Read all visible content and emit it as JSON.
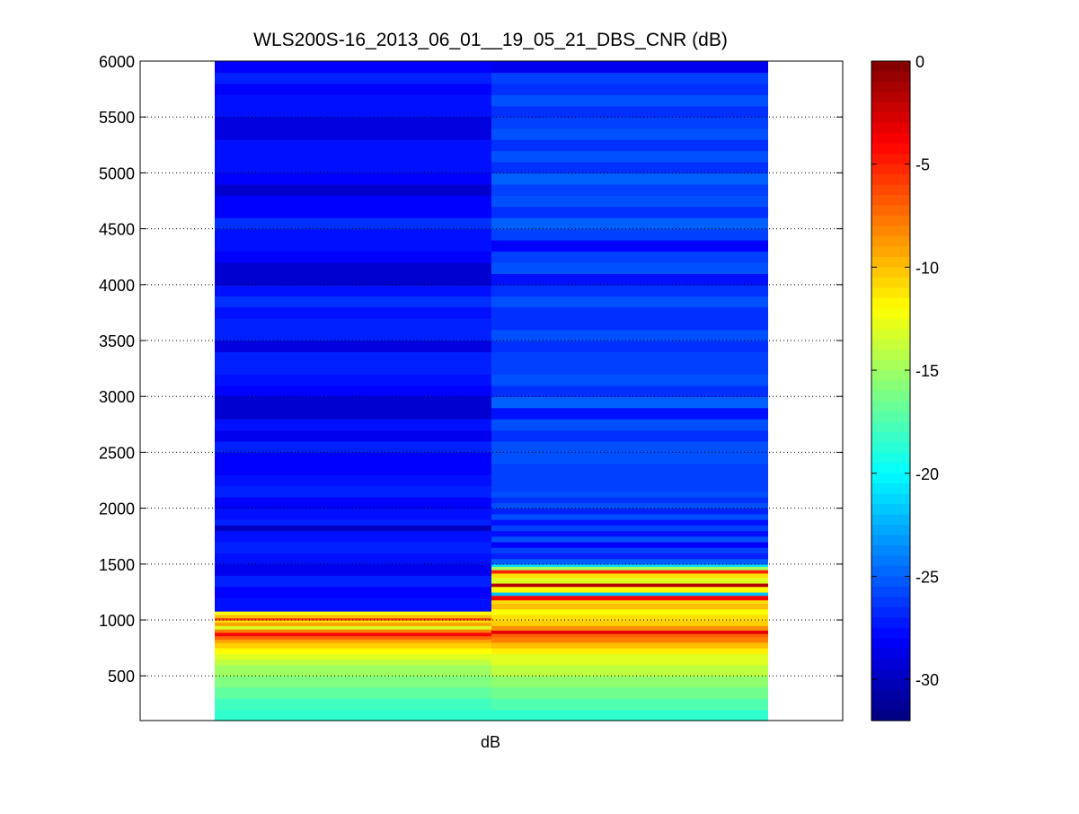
{
  "chart_data": {
    "type": "heatmap",
    "title": "WLS200S-16_2013_06_01__19_05_21_DBS_CNR (dB)",
    "xlabel": "dB",
    "ylabel": "",
    "ylim": [
      100,
      6000
    ],
    "yticks": [
      500,
      1000,
      1500,
      2000,
      2500,
      3000,
      3500,
      4000,
      4500,
      5000,
      5500,
      6000
    ],
    "grid": "horizontal dotted",
    "colormap": "jet",
    "colorbar": {
      "clim": [
        -32,
        0
      ],
      "ticks": [
        0,
        -5,
        -10,
        -15,
        -20,
        -25,
        -30
      ]
    },
    "columns": [
      {
        "rows": [
          [
            100,
            200,
            -18.5
          ],
          [
            200,
            300,
            -18.0
          ],
          [
            300,
            400,
            -17.0
          ],
          [
            400,
            500,
            -16.0
          ],
          [
            500,
            600,
            -15.0
          ],
          [
            600,
            650,
            -14.0
          ],
          [
            650,
            700,
            -13.0
          ],
          [
            700,
            750,
            -12.0
          ],
          [
            750,
            800,
            -10.5
          ],
          [
            800,
            830,
            -9.0
          ],
          [
            830,
            860,
            -7.0
          ],
          [
            860,
            890,
            -4.0
          ],
          [
            890,
            920,
            -8.0
          ],
          [
            920,
            950,
            -13.0
          ],
          [
            950,
            980,
            -9.0
          ],
          [
            980,
            1000,
            -11.0
          ],
          [
            1000,
            1020,
            -6.0
          ],
          [
            1020,
            1050,
            -10.0
          ],
          [
            1050,
            1080,
            -12.0
          ],
          [
            1080,
            1200,
            -27.5
          ],
          [
            1200,
            1300,
            -28.0
          ],
          [
            1300,
            1400,
            -27.0
          ],
          [
            1400,
            1500,
            -28.5
          ],
          [
            1500,
            1600,
            -27.5
          ],
          [
            1600,
            1700,
            -27.0
          ],
          [
            1700,
            1800,
            -27.5
          ],
          [
            1800,
            1850,
            -30.0
          ],
          [
            1850,
            1900,
            -27.0
          ],
          [
            1900,
            2000,
            -27.5
          ],
          [
            2000,
            2100,
            -28.0
          ],
          [
            2100,
            2200,
            -27.0
          ],
          [
            2200,
            2300,
            -27.5
          ],
          [
            2300,
            2500,
            -28.0
          ],
          [
            2500,
            2600,
            -27.0
          ],
          [
            2600,
            2700,
            -28.5
          ],
          [
            2700,
            2800,
            -27.5
          ],
          [
            2800,
            3000,
            -29.5
          ],
          [
            3000,
            3100,
            -28.0
          ],
          [
            3100,
            3200,
            -27.5
          ],
          [
            3200,
            3400,
            -27.0
          ],
          [
            3400,
            3500,
            -29.0
          ],
          [
            3500,
            3700,
            -27.0
          ],
          [
            3700,
            3800,
            -27.5
          ],
          [
            3800,
            3900,
            -26.5
          ],
          [
            3900,
            4000,
            -27.5
          ],
          [
            4000,
            4200,
            -29.5
          ],
          [
            4200,
            4300,
            -28.0
          ],
          [
            4300,
            4500,
            -27.5
          ],
          [
            4500,
            4600,
            -26.5
          ],
          [
            4600,
            4800,
            -28.0
          ],
          [
            4800,
            4900,
            -29.5
          ],
          [
            4900,
            5000,
            -28.0
          ],
          [
            5000,
            5300,
            -27.5
          ],
          [
            5300,
            5500,
            -29.0
          ],
          [
            5500,
            5700,
            -27.5
          ],
          [
            5700,
            5800,
            -28.0
          ],
          [
            5800,
            5900,
            -27.0
          ],
          [
            5900,
            6000,
            -28.0
          ]
        ]
      },
      {
        "rows": [
          [
            100,
            200,
            -18.5
          ],
          [
            200,
            300,
            -17.5
          ],
          [
            300,
            400,
            -16.5
          ],
          [
            400,
            500,
            -15.5
          ],
          [
            500,
            600,
            -14.0
          ],
          [
            600,
            700,
            -13.0
          ],
          [
            700,
            750,
            -11.5
          ],
          [
            750,
            800,
            -10.0
          ],
          [
            800,
            850,
            -8.0
          ],
          [
            850,
            880,
            -7.0
          ],
          [
            880,
            910,
            -3.0
          ],
          [
            910,
            950,
            -8.5
          ],
          [
            950,
            1000,
            -10.5
          ],
          [
            1000,
            1050,
            -11.0
          ],
          [
            1050,
            1100,
            -12.0
          ],
          [
            1100,
            1150,
            -10.0
          ],
          [
            1150,
            1180,
            -11.0
          ],
          [
            1180,
            1220,
            -4.0
          ],
          [
            1220,
            1250,
            -22.0
          ],
          [
            1250,
            1300,
            -12.0
          ],
          [
            1300,
            1330,
            -1.5
          ],
          [
            1330,
            1380,
            -13.0
          ],
          [
            1380,
            1420,
            -11.0
          ],
          [
            1420,
            1450,
            -5.0
          ],
          [
            1450,
            1480,
            -15.0
          ],
          [
            1480,
            1500,
            -21.0
          ],
          [
            1500,
            1550,
            -25.0
          ],
          [
            1550,
            1600,
            -27.0
          ],
          [
            1600,
            1650,
            -26.0
          ],
          [
            1650,
            1700,
            -28.0
          ],
          [
            1700,
            1750,
            -25.5
          ],
          [
            1750,
            1800,
            -27.5
          ],
          [
            1800,
            1850,
            -26.0
          ],
          [
            1850,
            1900,
            -27.5
          ],
          [
            1900,
            1950,
            -25.5
          ],
          [
            1950,
            2000,
            -27.0
          ],
          [
            2000,
            2050,
            -25.5
          ],
          [
            2050,
            2100,
            -26.5
          ],
          [
            2100,
            2150,
            -25.5
          ],
          [
            2150,
            2400,
            -26.0
          ],
          [
            2400,
            2600,
            -25.5
          ],
          [
            2600,
            2700,
            -26.5
          ],
          [
            2700,
            2800,
            -25.5
          ],
          [
            2800,
            2900,
            -27.5
          ],
          [
            2900,
            3000,
            -25.0
          ],
          [
            3000,
            3100,
            -26.5
          ],
          [
            3100,
            3200,
            -25.5
          ],
          [
            3200,
            3400,
            -26.0
          ],
          [
            3400,
            3500,
            -26.5
          ],
          [
            3500,
            3600,
            -25.5
          ],
          [
            3600,
            3800,
            -26.5
          ],
          [
            3800,
            3900,
            -25.5
          ],
          [
            3900,
            4000,
            -26.5
          ],
          [
            4000,
            4100,
            -27.5
          ],
          [
            4100,
            4200,
            -25.5
          ],
          [
            4200,
            4300,
            -26.0
          ],
          [
            4300,
            4400,
            -28.0
          ],
          [
            4400,
            4500,
            -26.0
          ],
          [
            4500,
            4600,
            -25.0
          ],
          [
            4600,
            4700,
            -26.5
          ],
          [
            4700,
            4800,
            -25.5
          ],
          [
            4800,
            4900,
            -26.0
          ],
          [
            4900,
            5000,
            -25.0
          ],
          [
            5000,
            5100,
            -26.5
          ],
          [
            5100,
            5200,
            -25.5
          ],
          [
            5200,
            5300,
            -26.5
          ],
          [
            5300,
            5400,
            -25.5
          ],
          [
            5400,
            5500,
            -26.0
          ],
          [
            5500,
            5600,
            -26.5
          ],
          [
            5600,
            5700,
            -25.5
          ],
          [
            5700,
            5800,
            -26.5
          ],
          [
            5800,
            5900,
            -26.0
          ],
          [
            5900,
            6000,
            -28.5
          ]
        ]
      }
    ]
  }
}
